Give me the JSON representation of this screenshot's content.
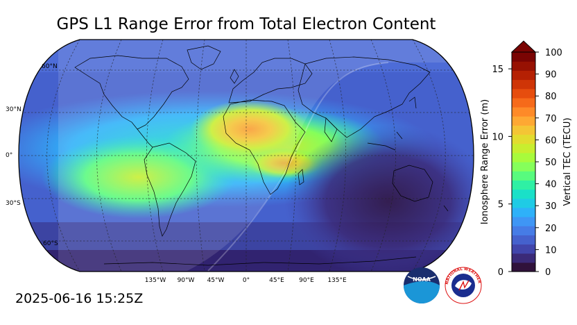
{
  "title": "GPS L1 Range Error from Total Electron Content",
  "timestamp": "2025-06-16 15:25Z",
  "map": {
    "lat_labels": [
      "60°N",
      "30°N",
      "0°",
      "30°S",
      "60°S"
    ],
    "lon_labels": [
      "135°W",
      "90°W",
      "45°W",
      "0°",
      "45°E",
      "90°E",
      "135°E"
    ]
  },
  "colorbar": {
    "left_axis_label": "Ionosphere Range Error (m)",
    "right_axis_label": "Vertical TEC (TECU)",
    "left_ticks": [
      "0",
      "5",
      "10",
      "15"
    ],
    "right_ticks": [
      "0",
      "10",
      "20",
      "30",
      "40",
      "50",
      "60",
      "70",
      "80",
      "90",
      "100"
    ],
    "extend": "max",
    "colors": [
      "#30123b",
      "#3b2a78",
      "#4145ab",
      "#4561cd",
      "#467ce6",
      "#3f96f5",
      "#2eb1f9",
      "#1fcbe5",
      "#1ae0c8",
      "#2ff0a4",
      "#58fb7e",
      "#85ff5a",
      "#a8fb3c",
      "#c8ee2f",
      "#e2dc2f",
      "#f4c535",
      "#fea833",
      "#fe8a28",
      "#f66a1a",
      "#e64d0e",
      "#cf3507",
      "#b52003",
      "#971102",
      "#7a0403"
    ]
  },
  "logos": {
    "noaa_text": "NOAA",
    "nws_text": "NATIONAL WEATHER SERVICE"
  }
}
